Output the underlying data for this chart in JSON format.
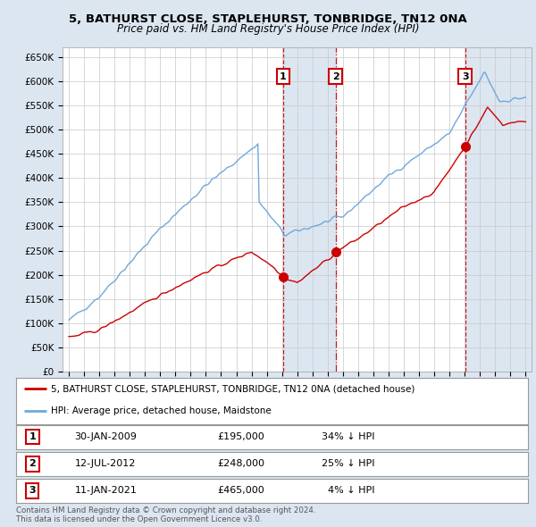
{
  "title_line1": "5, BATHURST CLOSE, STAPLEHURST, TONBRIDGE, TN12 0NA",
  "title_line2": "Price paid vs. HM Land Registry's House Price Index (HPI)",
  "hpi_color": "#6fa8dc",
  "price_color": "#cc0000",
  "bg_color": "#dce6f1",
  "plot_bg": "#ffffff",
  "shading_color": "#dce6f1",
  "grid_color": "#c8c8c8",
  "xlim_start": 1994.6,
  "xlim_end": 2025.4,
  "ylim": [
    0,
    670000
  ],
  "yticks": [
    0,
    50000,
    100000,
    150000,
    200000,
    250000,
    300000,
    350000,
    400000,
    450000,
    500000,
    550000,
    600000,
    650000
  ],
  "ytick_labels": [
    "£0",
    "£50K",
    "£100K",
    "£150K",
    "£200K",
    "£250K",
    "£300K",
    "£350K",
    "£400K",
    "£450K",
    "£500K",
    "£550K",
    "£600K",
    "£650K"
  ],
  "transaction_markers": [
    {
      "year": 2009.08,
      "price": 195000,
      "label": "1"
    },
    {
      "year": 2012.53,
      "price": 248000,
      "label": "2"
    },
    {
      "year": 2021.03,
      "price": 465000,
      "label": "3"
    }
  ],
  "legend_line1": "5, BATHURST CLOSE, STAPLEHURST, TONBRIDGE, TN12 0NA (detached house)",
  "legend_line2": "HPI: Average price, detached house, Maidstone",
  "table_rows": [
    {
      "num": "1",
      "date": "30-JAN-2009",
      "price": "£195,000",
      "hpi": "34% ↓ HPI"
    },
    {
      "num": "2",
      "date": "12-JUL-2012",
      "price": "£248,000",
      "hpi": "25% ↓ HPI"
    },
    {
      "num": "3",
      "date": "11-JAN-2021",
      "price": "£465,000",
      "hpi": "4% ↓ HPI"
    }
  ],
  "footnote": "Contains HM Land Registry data © Crown copyright and database right 2024.\nThis data is licensed under the Open Government Licence v3.0."
}
